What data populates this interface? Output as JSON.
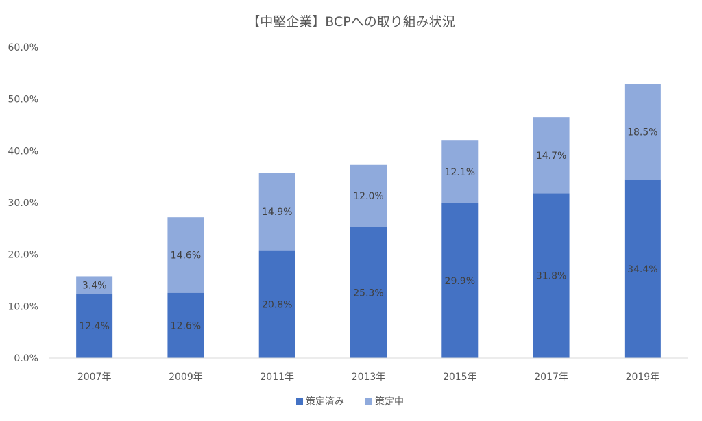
{
  "chart_data": {
    "type": "bar",
    "stacked": true,
    "title": "【中堅企業】BCPへの取り組み状況",
    "xlabel": "",
    "ylabel": "",
    "categories": [
      "2007年",
      "2009年",
      "2011年",
      "2013年",
      "2015年",
      "2017年",
      "2019年"
    ],
    "series": [
      {
        "name": "策定済み",
        "color": "#4472C4",
        "values": [
          12.4,
          12.6,
          20.8,
          25.3,
          29.9,
          31.8,
          34.4
        ],
        "labels": [
          "12.4%",
          "12.6%",
          "20.8%",
          "25.3%",
          "29.9%",
          "31.8%",
          "34.4%"
        ]
      },
      {
        "name": "策定中",
        "color": "#8FAADC",
        "values": [
          3.4,
          14.6,
          14.9,
          12.0,
          12.1,
          14.7,
          18.5
        ],
        "labels": [
          "3.4%",
          "14.6%",
          "14.9%",
          "12.0%",
          "12.1%",
          "14.7%",
          "18.5%"
        ]
      }
    ],
    "ylim": [
      0,
      60
    ],
    "yticks": [
      0,
      10,
      20,
      30,
      40,
      50,
      60
    ],
    "ytick_labels": [
      "0.0%",
      "10.0%",
      "20.0%",
      "30.0%",
      "40.0%",
      "50.0%",
      "60.0%"
    ],
    "grid": false,
    "legend_position": "bottom"
  }
}
